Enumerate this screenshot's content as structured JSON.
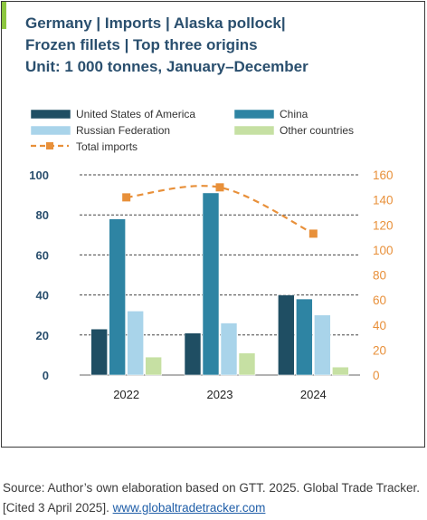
{
  "title_lines": [
    "Germany | Imports | Alaska pollock|",
    "Frozen fillets | Top three origins",
    "Unit: 1 000 tonnes, January–December"
  ],
  "colors": {
    "title": "#2a4f6e",
    "usa": "#1f4e63",
    "china": "#2e84a3",
    "russia": "#a9d4ea",
    "other": "#c6e0a3",
    "total": "#e8903a",
    "accent": "#8cc63f"
  },
  "source": {
    "text": "Source: Author’s own elaboration based on GTT. 2025. Global Trade Tracker. [Cited 3 April 2025].",
    "link": "www.globaltradetracker.com"
  },
  "chart_data": {
    "type": "bar",
    "categories": [
      "2022",
      "2023",
      "2024"
    ],
    "series": [
      {
        "name": "United States of America",
        "values": [
          23,
          21,
          40
        ],
        "axis": "left"
      },
      {
        "name": "China",
        "values": [
          78,
          91,
          38
        ],
        "axis": "left"
      },
      {
        "name": "Russian Federation",
        "values": [
          32,
          26,
          30
        ],
        "axis": "left"
      },
      {
        "name": "Other countries",
        "values": [
          9,
          11,
          4
        ],
        "axis": "left"
      },
      {
        "name": "Total imports",
        "type": "line",
        "values": [
          142,
          150,
          113
        ],
        "axis": "right"
      }
    ],
    "ylim": [
      0,
      100
    ],
    "y_ticks": [
      "0",
      "20",
      "40",
      "60",
      "80",
      "100"
    ],
    "y2lim": [
      0,
      160
    ],
    "y2_ticks": [
      "0",
      "20",
      "40",
      "60",
      "80",
      "100",
      "120",
      "140",
      "160"
    ],
    "legend": "top",
    "grid": "horizontal dashed"
  }
}
